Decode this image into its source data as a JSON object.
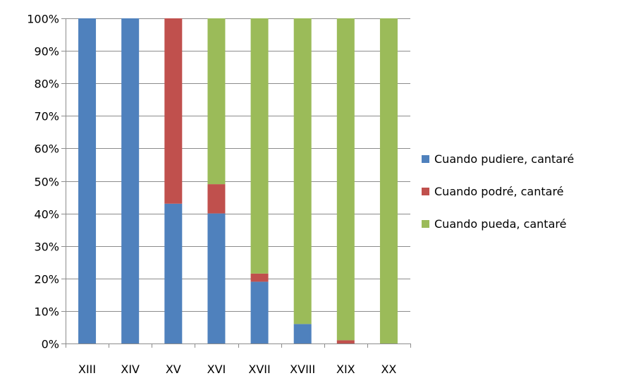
{
  "chart_data": {
    "type": "bar",
    "stacked": true,
    "percent_stacked": true,
    "categories": [
      "XIII",
      "XIV",
      "XV",
      "XVI",
      "XVII",
      "XVIII",
      "XIX",
      "XX"
    ],
    "series": [
      {
        "name": "Cuando pudiere, cantaré",
        "color": "#4F81BD",
        "values": [
          100,
          100,
          43,
          40,
          19,
          6,
          0,
          0
        ]
      },
      {
        "name": "Cuando podré, cantaré",
        "color": "#C0504D",
        "values": [
          0,
          0,
          57,
          9,
          2.5,
          0,
          1,
          0
        ]
      },
      {
        "name": "Cuando pueda, cantaré",
        "color": "#9BBB59",
        "values": [
          0,
          0,
          0,
          51,
          78.5,
          94,
          99,
          100
        ]
      }
    ],
    "ylim": [
      0,
      100
    ],
    "y_ticks": [
      "0%",
      "10%",
      "20%",
      "30%",
      "40%",
      "50%",
      "60%",
      "70%",
      "80%",
      "90%",
      "100%"
    ],
    "grid": true,
    "legend_position": "right",
    "title": "",
    "xlabel": "",
    "ylabel": ""
  }
}
